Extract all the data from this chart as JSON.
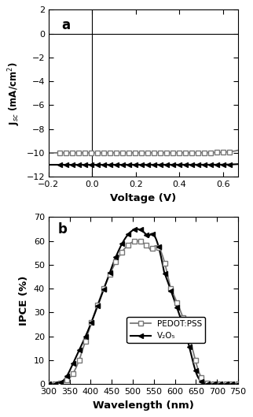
{
  "panel_a_label": "a",
  "panel_b_label": "b",
  "ylabel_a": "J$_{sc}$ (mA/cm$^2$)",
  "xlabel_a": "Voltage (V)",
  "ylabel_b": "IPCE (%)",
  "xlabel_b": "Wavelength (nm)",
  "xlim_a": [
    -0.15,
    0.67
  ],
  "ylim_a": [
    -12,
    2
  ],
  "xlim_b": [
    300,
    750
  ],
  "ylim_b": [
    0,
    70
  ],
  "xticks_a": [
    -0.2,
    0.0,
    0.2,
    0.4,
    0.6
  ],
  "yticks_a": [
    -12,
    -10,
    -8,
    -6,
    -4,
    -2,
    0,
    2
  ],
  "xticks_b": [
    300,
    350,
    400,
    450,
    500,
    550,
    600,
    650,
    700,
    750
  ],
  "yticks_b": [
    0,
    10,
    20,
    30,
    40,
    50,
    60,
    70
  ],
  "legend_labels": [
    "PEDOT:PSS",
    "V₂O₅"
  ],
  "pedot_color": "#777777",
  "v2o5_color": "#000000",
  "background_color": "#ffffff"
}
